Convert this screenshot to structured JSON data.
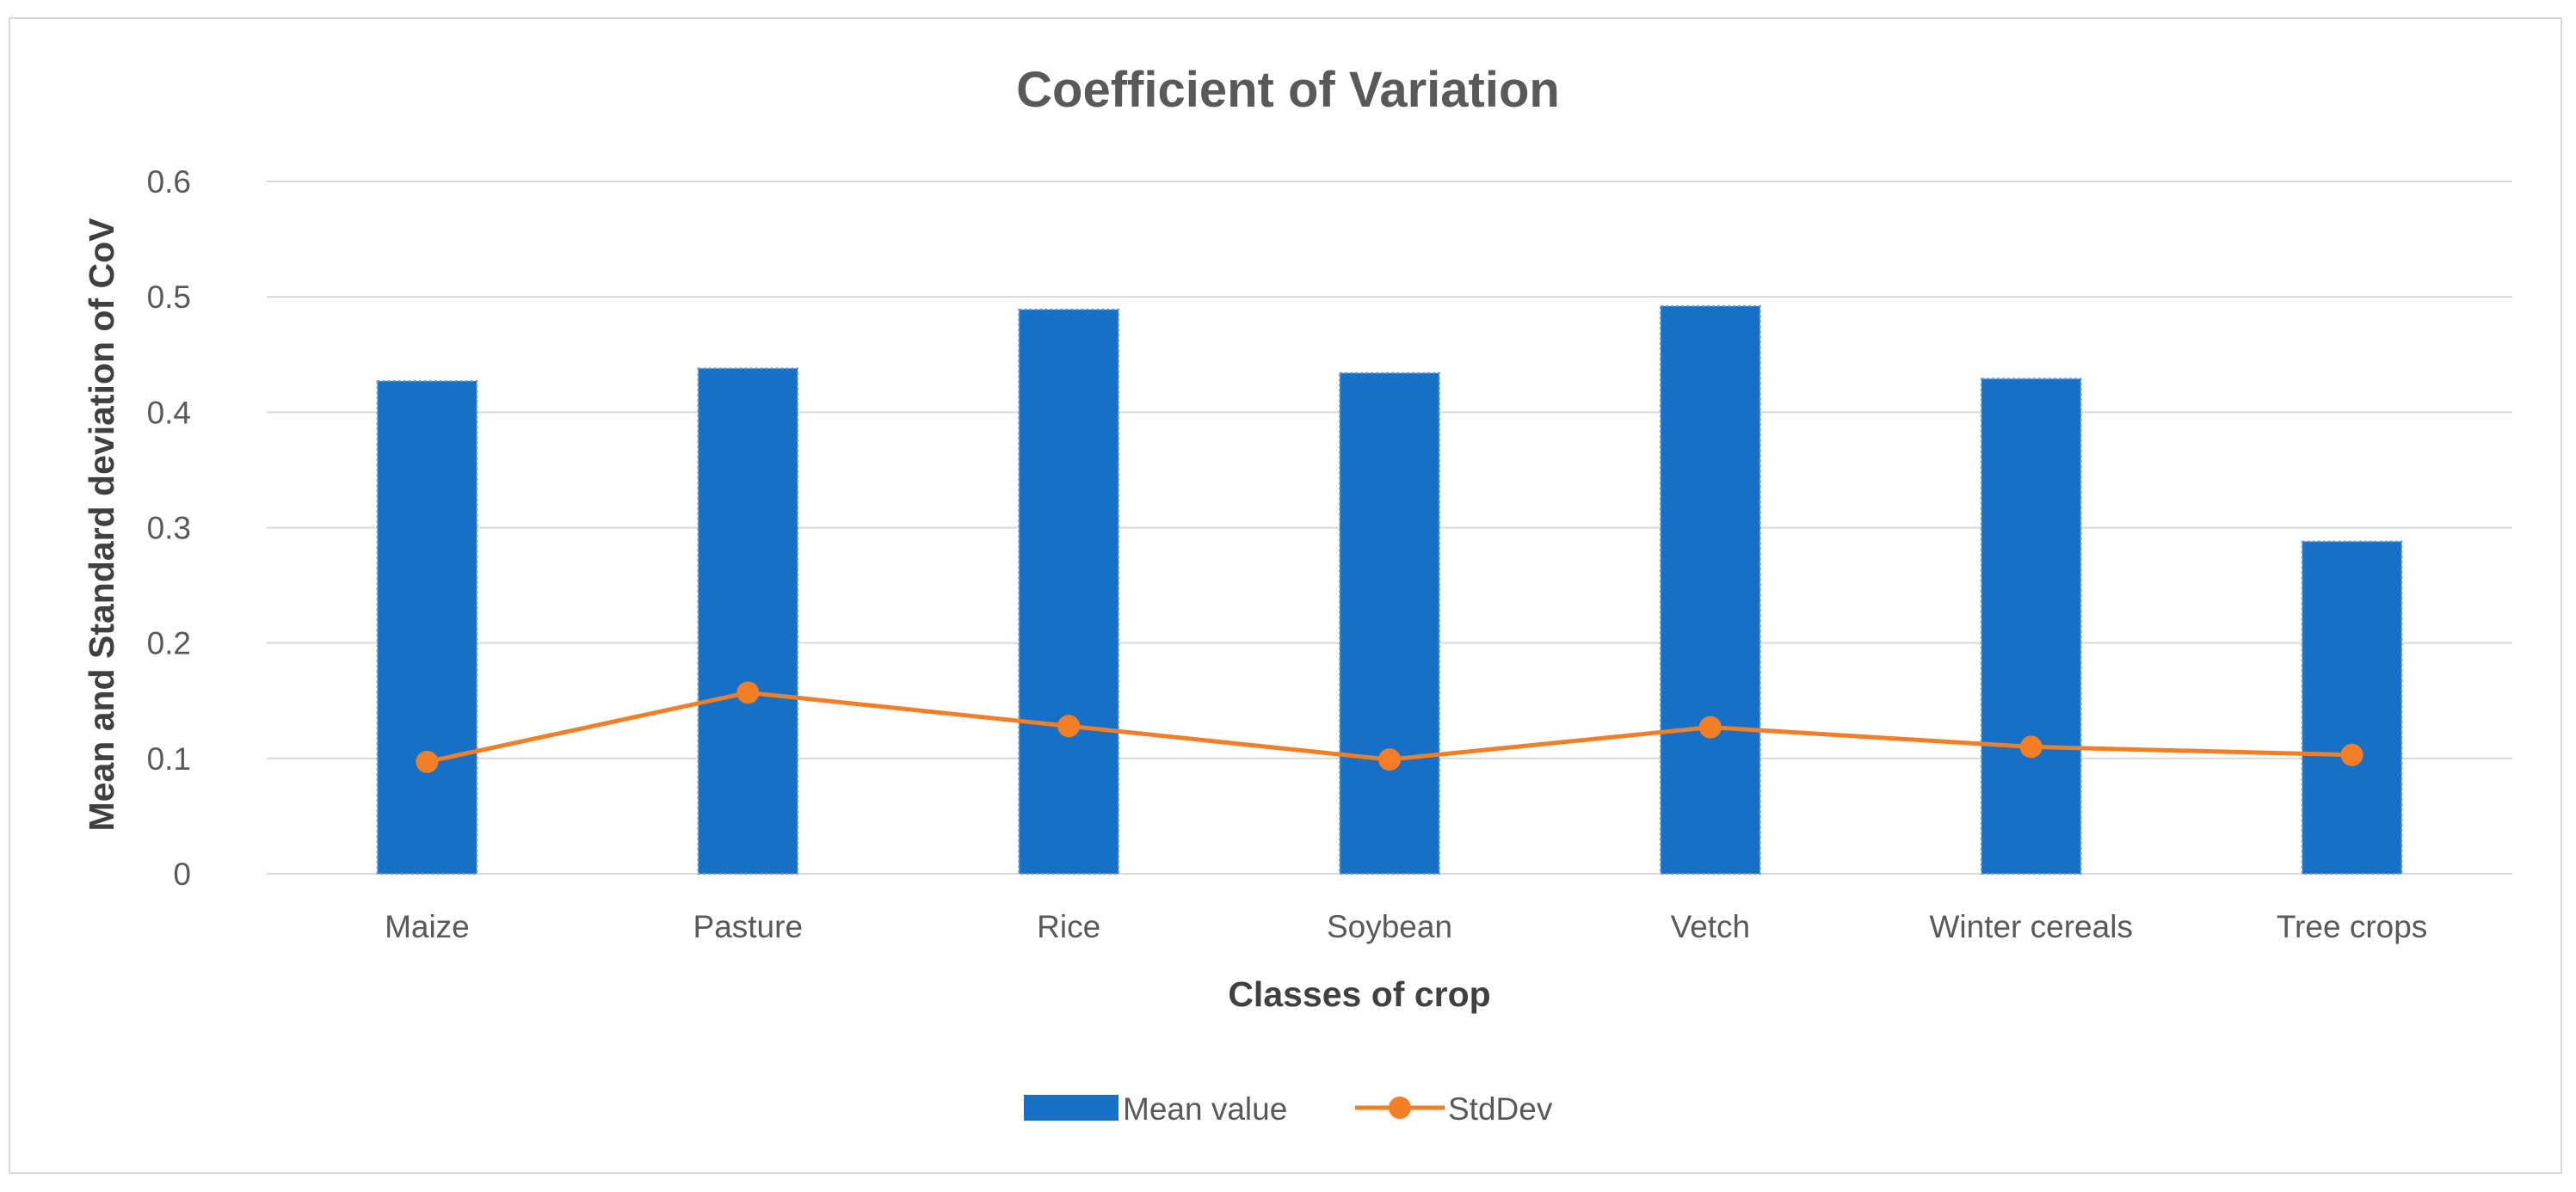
{
  "chart_data": {
    "type": "bar",
    "title": "Coefficient of Variation",
    "xlabel": "Classes of crop",
    "ylabel": "Mean and Standard deviation of CoV",
    "categories": [
      "Maize",
      "Pasture",
      "Rice",
      "Soybean",
      "Vetch",
      "Winter cereals",
      "Tree crops"
    ],
    "ylim": [
      0,
      0.6
    ],
    "yticks": [
      "0",
      "0.1",
      "0.2",
      "0.3",
      "0.4",
      "0.5",
      "0.6"
    ],
    "grid": true,
    "legend_position": "bottom",
    "series": [
      {
        "name": "Mean value",
        "kind": "bar",
        "color": "#1570c6",
        "values": [
          0.427,
          0.438,
          0.489,
          0.434,
          0.492,
          0.429,
          0.288
        ]
      },
      {
        "name": "StdDev",
        "kind": "line",
        "color": "#f27e26",
        "values": [
          0.097,
          0.157,
          0.128,
          0.099,
          0.127,
          0.11,
          0.103
        ]
      }
    ]
  }
}
